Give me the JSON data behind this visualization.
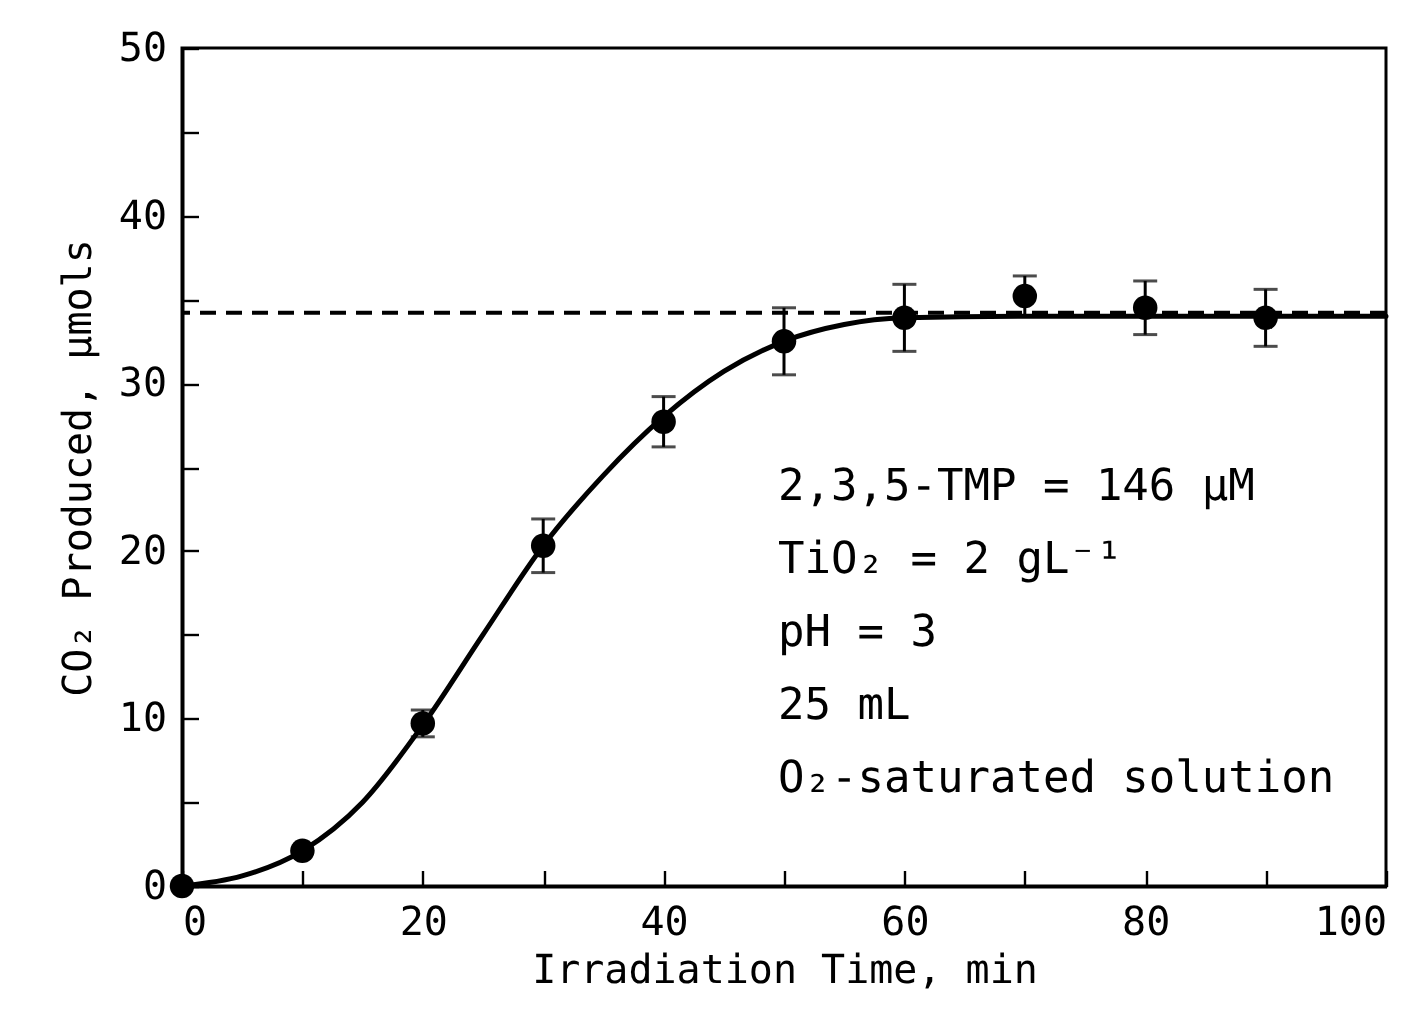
{
  "chart_data": {
    "type": "scatter",
    "xlabel": "Irradiation Time, min",
    "ylabel": "CO₂ Produced, µmols",
    "xlim": [
      0,
      100
    ],
    "ylim": [
      0,
      50
    ],
    "xticks": [
      0,
      {
        "value": 10,
        "label": null
      },
      20,
      {
        "value": 30,
        "label": null
      },
      40,
      {
        "value": 50,
        "label": null
      },
      60,
      {
        "value": 70,
        "label": null
      },
      80,
      {
        "value": 90,
        "label": null
      },
      100
    ],
    "yticks": [
      0,
      {
        "value": 5,
        "label": null
      },
      10,
      {
        "value": 15,
        "label": null
      },
      20,
      {
        "value": 25,
        "label": null
      },
      30,
      {
        "value": 35,
        "label": null
      },
      40,
      {
        "value": 45,
        "label": null
      },
      50
    ],
    "x": [
      0,
      10,
      20,
      30,
      40,
      50,
      60,
      70,
      80,
      90
    ],
    "series": [
      {
        "color": "#000000",
        "marker": "circle",
        "values": [
          0,
          2.1,
          9.7,
          20.3,
          27.7,
          32.5,
          33.9,
          35.2,
          34.5,
          33.9
        ],
        "errors": [
          null,
          null,
          0.8,
          1.6,
          1.5,
          2.0,
          2.0,
          1.2,
          1.6,
          1.7
        ]
      },
      {
        "type": "line",
        "color": "#000000",
        "marker": "none",
        "line_style": "solid",
        "x": [
          0,
          5,
          10,
          15,
          20,
          25,
          30,
          35,
          40,
          45,
          50,
          55,
          60,
          70,
          80,
          90,
          100
        ],
        "values": [
          0,
          0.6,
          2.1,
          5,
          9.6,
          15,
          20.3,
          24.5,
          28,
          30.7,
          32.5,
          33.5,
          33.9,
          34,
          34,
          34,
          34
        ]
      }
    ],
    "ref_lines": [
      {
        "axis": "y",
        "value": 34.2,
        "line_style": "dashed",
        "color": "#000000"
      }
    ],
    "annotations": [
      "2,3,5-TMP = 146 µM",
      "TiO₂ = 2 gL⁻¹",
      "pH = 3",
      "25 mL",
      "O₂-saturated solution"
    ],
    "grid": false
  }
}
